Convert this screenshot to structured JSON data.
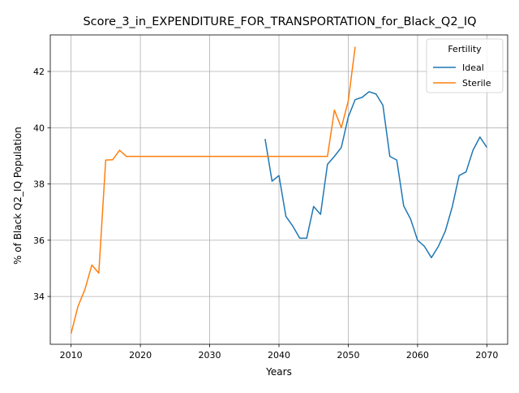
{
  "chart_data": {
    "type": "line",
    "title": "Score_3_in_EXPENDITURE_FOR_TRANSPORTATION_for_Black_Q2_IQ",
    "xlabel": "Years",
    "ylabel": "% of Black Q2_IQ Population",
    "xlim": [
      2007,
      2073
    ],
    "ylim": [
      32.3,
      43.3
    ],
    "xticks": [
      2010,
      2020,
      2030,
      2040,
      2050,
      2060,
      2070
    ],
    "yticks": [
      34,
      36,
      38,
      40,
      42
    ],
    "grid": true,
    "legend": {
      "title": "Fertility",
      "placement": "top-right"
    },
    "series": [
      {
        "name": "Ideal",
        "color": "#1f77b4",
        "x": [
          2038,
          2039,
          2040,
          2041,
          2042,
          2043,
          2044,
          2045,
          2046,
          2047,
          2048,
          2049,
          2050,
          2051,
          2052,
          2053,
          2054,
          2055,
          2056,
          2057,
          2058,
          2059,
          2060,
          2061,
          2062,
          2063,
          2064,
          2065,
          2066,
          2067,
          2068,
          2069,
          2070
        ],
        "y": [
          39.6,
          38.1,
          38.3,
          36.85,
          36.5,
          36.07,
          36.07,
          37.2,
          36.92,
          38.7,
          38.98,
          39.3,
          40.38,
          41.0,
          41.08,
          41.28,
          41.2,
          40.8,
          38.98,
          38.85,
          37.22,
          36.75,
          36.0,
          35.78,
          35.38,
          35.78,
          36.32,
          37.18,
          38.3,
          38.43,
          39.2,
          39.67,
          39.3
        ]
      },
      {
        "name": "Sterile",
        "color": "#ff7f0e",
        "x": [
          2010,
          2011,
          2012,
          2013,
          2014,
          2015,
          2016,
          2017,
          2018,
          2019,
          2020,
          2021,
          2022,
          2023,
          2024,
          2025,
          2026,
          2027,
          2028,
          2029,
          2030,
          2031,
          2032,
          2033,
          2034,
          2035,
          2036,
          2037,
          2038,
          2039,
          2040,
          2041,
          2042,
          2043,
          2044,
          2045,
          2046,
          2047,
          2048,
          2049,
          2050,
          2051
        ],
        "y": [
          32.68,
          33.65,
          34.25,
          35.12,
          34.83,
          38.85,
          38.86,
          39.2,
          38.98,
          38.98,
          38.98,
          38.98,
          38.98,
          38.98,
          38.98,
          38.98,
          38.98,
          38.98,
          38.98,
          38.98,
          38.98,
          38.98,
          38.98,
          38.98,
          38.98,
          38.98,
          38.98,
          38.98,
          38.98,
          38.98,
          38.98,
          38.98,
          38.98,
          38.98,
          38.98,
          38.98,
          38.98,
          38.98,
          40.63,
          40.0,
          40.95,
          42.88
        ]
      }
    ]
  }
}
